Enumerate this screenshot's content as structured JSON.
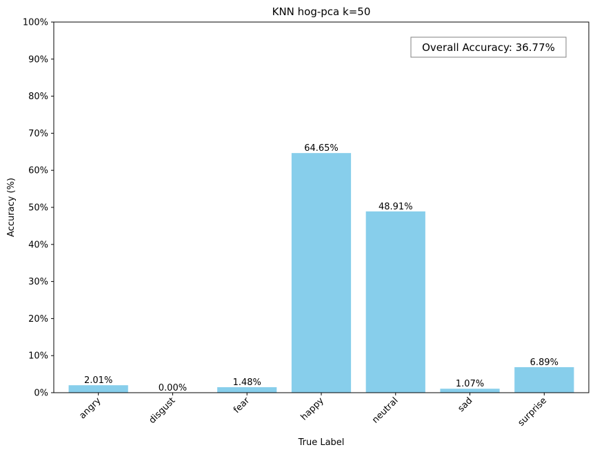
{
  "chart_data": {
    "type": "bar",
    "title": "KNN hog-pca k=50",
    "xlabel": "True Label",
    "ylabel": "Accuracy (%)",
    "categories": [
      "angry",
      "disgust",
      "fear",
      "happy",
      "neutral",
      "sad",
      "surprise"
    ],
    "values": [
      2.01,
      0.0,
      1.48,
      64.65,
      48.91,
      1.07,
      6.89
    ],
    "value_labels": [
      "2.01%",
      "0.00%",
      "1.48%",
      "64.65%",
      "48.91%",
      "1.07%",
      "6.89%"
    ],
    "ylim": [
      0,
      100
    ],
    "yticks": [
      0,
      10,
      20,
      30,
      40,
      50,
      60,
      70,
      80,
      90,
      100
    ],
    "ytick_labels": [
      "0%",
      "10%",
      "20%",
      "30%",
      "40%",
      "50%",
      "60%",
      "70%",
      "80%",
      "90%",
      "100%"
    ],
    "bar_color": "#87ceeb",
    "grid": false,
    "annotation": "Overall Accuracy: 36.77%",
    "annotation_position": "top-right"
  }
}
